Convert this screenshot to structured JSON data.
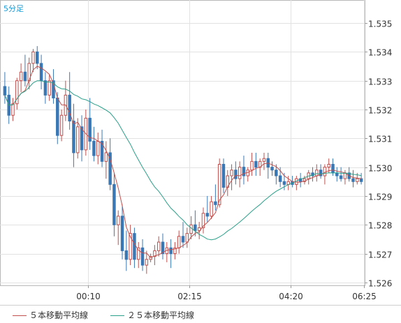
{
  "chart_data": {
    "type": "candlestick",
    "timeframe": "5分足",
    "y_ticks": [
      1.535,
      1.534,
      1.533,
      1.532,
      1.531,
      1.53,
      1.529,
      1.528,
      1.527,
      1.526
    ],
    "y_tick_labels": [
      "1.535",
      "1.534",
      "1.533",
      "1.532",
      "1.531",
      "1.530",
      "1.529",
      "1.528",
      "1.527",
      "1.526"
    ],
    "ylim": [
      1.5259,
      1.5358
    ],
    "x_tick_labels": [
      "00:10",
      "02:15",
      "04:20",
      "06:25"
    ],
    "candles": [
      [
        1.5328,
        1.5333,
        1.5322,
        1.5325
      ],
      [
        1.5325,
        1.5328,
        1.5315,
        1.5318
      ],
      [
        1.5318,
        1.5324,
        1.5316,
        1.5322
      ],
      [
        1.5322,
        1.5331,
        1.532,
        1.533
      ],
      [
        1.533,
        1.5336,
        1.5326,
        1.5333
      ],
      [
        1.5333,
        1.5339,
        1.5328,
        1.533
      ],
      [
        1.533,
        1.5338,
        1.5327,
        1.5336
      ],
      [
        1.5336,
        1.5341,
        1.5333,
        1.534
      ],
      [
        1.534,
        1.5342,
        1.5334,
        1.5336
      ],
      [
        1.5336,
        1.5339,
        1.5327,
        1.533
      ],
      [
        1.533,
        1.5333,
        1.5322,
        1.5325
      ],
      [
        1.5325,
        1.5332,
        1.5323,
        1.533
      ],
      [
        1.533,
        1.5334,
        1.5322,
        1.5324
      ],
      [
        1.5324,
        1.5326,
        1.5308,
        1.5311
      ],
      [
        1.5311,
        1.532,
        1.5309,
        1.5318
      ],
      [
        1.5318,
        1.533,
        1.5316,
        1.5325
      ],
      [
        1.5325,
        1.5333,
        1.5313,
        1.5316
      ],
      [
        1.5316,
        1.5322,
        1.53,
        1.5305
      ],
      [
        1.5305,
        1.5317,
        1.5303,
        1.5314
      ],
      [
        1.5314,
        1.5318,
        1.5302,
        1.5306
      ],
      [
        1.5306,
        1.532,
        1.5304,
        1.5317
      ],
      [
        1.5317,
        1.5324,
        1.5306,
        1.5309
      ],
      [
        1.5309,
        1.5314,
        1.5302,
        1.5304
      ],
      [
        1.5304,
        1.5312,
        1.5301,
        1.5309
      ],
      [
        1.5309,
        1.5313,
        1.53,
        1.5302
      ],
      [
        1.5302,
        1.5309,
        1.5296,
        1.5305
      ],
      [
        1.5305,
        1.531,
        1.5292,
        1.5294
      ],
      [
        1.5294,
        1.5298,
        1.5276,
        1.528
      ],
      [
        1.528,
        1.5285,
        1.5273,
        1.5283
      ],
      [
        1.5283,
        1.5287,
        1.5268,
        1.5271
      ],
      [
        1.5271,
        1.5278,
        1.5264,
        1.5268
      ],
      [
        1.5268,
        1.528,
        1.5266,
        1.5277
      ],
      [
        1.5277,
        1.5279,
        1.5265,
        1.5268
      ],
      [
        1.5268,
        1.5274,
        1.5265,
        1.5272
      ],
      [
        1.5272,
        1.5275,
        1.5264,
        1.5266
      ],
      [
        1.5266,
        1.5271,
        1.5263,
        1.5268
      ],
      [
        1.5268,
        1.527,
        1.5267,
        1.5269
      ],
      [
        1.5269,
        1.5273,
        1.5266,
        1.5271
      ],
      [
        1.5271,
        1.5276,
        1.5269,
        1.5274
      ],
      [
        1.5274,
        1.5277,
        1.5268,
        1.527
      ],
      [
        1.527,
        1.5274,
        1.5267,
        1.5272
      ],
      [
        1.5272,
        1.5275,
        1.5265,
        1.527
      ],
      [
        1.527,
        1.5274,
        1.5268,
        1.5272
      ],
      [
        1.5272,
        1.5278,
        1.527,
        1.5276
      ],
      [
        1.5276,
        1.5281,
        1.5272,
        1.5274
      ],
      [
        1.5274,
        1.5279,
        1.5272,
        1.5277
      ],
      [
        1.5277,
        1.5283,
        1.5275,
        1.528
      ],
      [
        1.528,
        1.5285,
        1.5276,
        1.5278
      ],
      [
        1.5278,
        1.5281,
        1.5275,
        1.5279
      ],
      [
        1.5279,
        1.5286,
        1.5277,
        1.5284
      ],
      [
        1.5284,
        1.529,
        1.5281,
        1.5283
      ],
      [
        1.5283,
        1.529,
        1.5282,
        1.5288
      ],
      [
        1.5288,
        1.5294,
        1.5285,
        1.5287
      ],
      [
        1.5287,
        1.5303,
        1.5286,
        1.5301
      ],
      [
        1.5301,
        1.5303,
        1.5291,
        1.5293
      ],
      [
        1.5293,
        1.5299,
        1.529,
        1.5297
      ],
      [
        1.5297,
        1.5301,
        1.5292,
        1.5299
      ],
      [
        1.5299,
        1.5302,
        1.5294,
        1.5296
      ],
      [
        1.5296,
        1.5302,
        1.5293,
        1.53
      ],
      [
        1.53,
        1.5304,
        1.5294,
        1.5297
      ],
      [
        1.5297,
        1.53,
        1.5295,
        1.5299
      ],
      [
        1.5299,
        1.5305,
        1.5297,
        1.5302
      ],
      [
        1.5302,
        1.5305,
        1.5297,
        1.53
      ],
      [
        1.53,
        1.5303,
        1.5297,
        1.5302
      ],
      [
        1.5302,
        1.5305,
        1.5299,
        1.5303
      ],
      [
        1.5303,
        1.5305,
        1.5296,
        1.53
      ],
      [
        1.53,
        1.5302,
        1.5297,
        1.5299
      ],
      [
        1.5299,
        1.5301,
        1.5294,
        1.5297
      ],
      [
        1.5297,
        1.53,
        1.5293,
        1.5295
      ],
      [
        1.5295,
        1.5298,
        1.5292,
        1.5294
      ],
      [
        1.5294,
        1.5297,
        1.5292,
        1.5295
      ],
      [
        1.5295,
        1.5297,
        1.5293,
        1.5294
      ],
      [
        1.5294,
        1.5297,
        1.5292,
        1.5296
      ],
      [
        1.5296,
        1.5298,
        1.5293,
        1.5295
      ],
      [
        1.5295,
        1.5297,
        1.5294,
        1.5296
      ],
      [
        1.5296,
        1.5299,
        1.5294,
        1.5298
      ],
      [
        1.5298,
        1.53,
        1.5295,
        1.5297
      ],
      [
        1.5297,
        1.5301,
        1.5295,
        1.5299
      ],
      [
        1.5299,
        1.5301,
        1.5296,
        1.5297
      ],
      [
        1.5297,
        1.5301,
        1.5294,
        1.53
      ],
      [
        1.53,
        1.5303,
        1.5298,
        1.5301
      ],
      [
        1.5301,
        1.5303,
        1.5297,
        1.5298
      ],
      [
        1.5298,
        1.53,
        1.5295,
        1.5297
      ],
      [
        1.5297,
        1.53,
        1.5295,
        1.5296
      ],
      [
        1.5296,
        1.5299,
        1.5294,
        1.5298
      ],
      [
        1.5298,
        1.53,
        1.5295,
        1.5296
      ],
      [
        1.5296,
        1.5299,
        1.5293,
        1.5295
      ],
      [
        1.5295,
        1.5298,
        1.5294,
        1.5296
      ],
      [
        1.5296,
        1.5298,
        1.5294,
        1.5295
      ]
    ],
    "series": [
      {
        "name": "５本移動平均線",
        "color": "#c0504d"
      },
      {
        "name": "２５本移動平均線",
        "color": "#2aa08a"
      }
    ],
    "grid": true,
    "legend_position": "bottom-left"
  }
}
